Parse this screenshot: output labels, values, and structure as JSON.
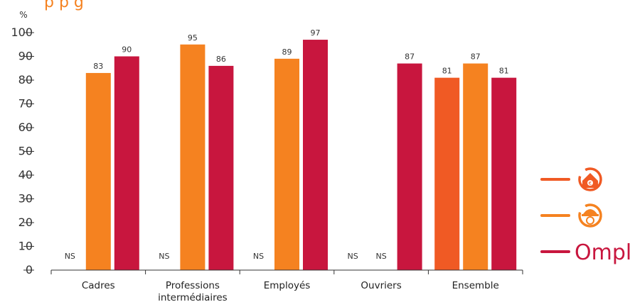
{
  "title_fragment": "p     p            g",
  "colors": {
    "series1": "#F05A24",
    "series2": "#F58220",
    "series3": "#C8163E",
    "title": "#F58220",
    "axis": "#333333"
  },
  "legend": {
    "position": "right",
    "items": [
      {
        "icon": "house-euro-icon",
        "color": "#F05A24"
      },
      {
        "icon": "hardhat-euro-icon",
        "color": "#F58220"
      },
      {
        "label": "Ompl",
        "color": "#C8163E"
      }
    ]
  },
  "chart_data": {
    "type": "bar",
    "ylabel": "%",
    "ylim": [
      0,
      100
    ],
    "yticks": [
      0,
      10,
      20,
      30,
      40,
      50,
      60,
      70,
      80,
      90,
      100
    ],
    "categories": [
      "Cadres",
      "Professions intermédiaires",
      "Employés",
      "Ouvriers",
      "Ensemble"
    ],
    "category_lines": [
      [
        "Cadres"
      ],
      [
        "Professions",
        "intermédiaires"
      ],
      [
        "Employés"
      ],
      [
        "Ouvriers"
      ],
      [
        "Ensemble"
      ]
    ],
    "series": [
      {
        "color": "#F05A24",
        "values": [
          null,
          null,
          null,
          null,
          81
        ],
        "labels": [
          "NS",
          "NS",
          "NS",
          "NS",
          "81"
        ]
      },
      {
        "color": "#F58220",
        "values": [
          83,
          95,
          89,
          null,
          87
        ],
        "labels": [
          "83",
          "95",
          "89",
          "NS",
          "87"
        ]
      },
      {
        "color": "#C8163E",
        "values": [
          90,
          86,
          97,
          87,
          81
        ],
        "labels": [
          "90",
          "86",
          "97",
          "87",
          "81"
        ]
      }
    ],
    "grid": false,
    "grid_visible": false
  }
}
